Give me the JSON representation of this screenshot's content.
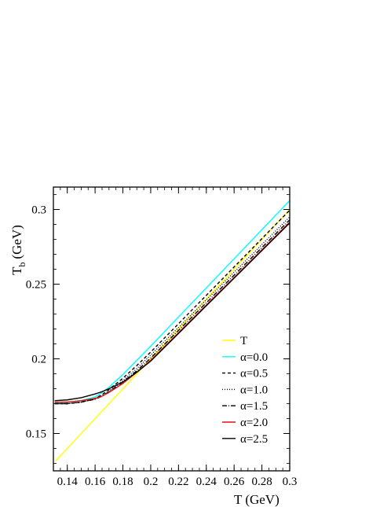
{
  "chart_data": {
    "type": "line",
    "xlabel": "T (GeV)",
    "ylabel_main": "T",
    "ylabel_sub": "b",
    "ylabel_unit": "(GeV)",
    "xlim": [
      0.13,
      0.3
    ],
    "ylim": [
      0.125,
      0.315
    ],
    "xticks": [
      0.14,
      0.16,
      0.18,
      0.2,
      0.22,
      0.24,
      0.26,
      0.28,
      0.3
    ],
    "xtick_labels": [
      "0.14",
      "0.16",
      "0.18",
      "0.2",
      "0.22",
      "0.24",
      "0.26",
      "0.28",
      "0.3"
    ],
    "yticks": [
      0.15,
      0.2,
      0.25,
      0.3
    ],
    "ytick_labels": [
      "0.15",
      "0.2",
      "0.25",
      "0.3"
    ],
    "legend_position": "lower-right",
    "series": [
      {
        "name": "T",
        "color": "#ffff00",
        "dash": "",
        "x": [
          0.1315,
          0.3
        ],
        "y": [
          0.1315,
          0.3
        ]
      },
      {
        "name": "α=0.0",
        "color": "#00ffff",
        "dash": "",
        "x": [
          0.131,
          0.14,
          0.15,
          0.16,
          0.165,
          0.17,
          0.18,
          0.19,
          0.2,
          0.22,
          0.24,
          0.26,
          0.28,
          0.3
        ],
        "y": [
          0.171,
          0.171,
          0.172,
          0.1745,
          0.1775,
          0.181,
          0.1895,
          0.199,
          0.2085,
          0.228,
          0.2475,
          0.267,
          0.2865,
          0.306
        ]
      },
      {
        "name": "α=0.5",
        "color": "#000000",
        "dash": "4,3",
        "x": [
          0.131,
          0.14,
          0.15,
          0.16,
          0.165,
          0.17,
          0.18,
          0.19,
          0.2,
          0.22,
          0.24,
          0.26,
          0.28,
          0.3
        ],
        "y": [
          0.17,
          0.17,
          0.171,
          0.1735,
          0.176,
          0.1795,
          0.187,
          0.1955,
          0.2045,
          0.2235,
          0.2425,
          0.2615,
          0.2805,
          0.2995
        ]
      },
      {
        "name": "α=1.0",
        "color": "#000000",
        "dash": "1,2",
        "x": [
          0.131,
          0.14,
          0.15,
          0.16,
          0.165,
          0.17,
          0.18,
          0.19,
          0.2,
          0.22,
          0.24,
          0.26,
          0.28,
          0.3
        ],
        "y": [
          0.17,
          0.17,
          0.171,
          0.173,
          0.1755,
          0.1785,
          0.1855,
          0.1935,
          0.2025,
          0.221,
          0.2395,
          0.258,
          0.2765,
          0.295
        ]
      },
      {
        "name": "α=1.5",
        "color": "#000000",
        "dash": "6,2,1,2",
        "x": [
          0.131,
          0.14,
          0.15,
          0.16,
          0.165,
          0.17,
          0.18,
          0.19,
          0.2,
          0.22,
          0.24,
          0.26,
          0.28,
          0.3
        ],
        "y": [
          0.17,
          0.17,
          0.171,
          0.173,
          0.175,
          0.178,
          0.1845,
          0.192,
          0.2005,
          0.219,
          0.2375,
          0.256,
          0.2745,
          0.293
        ]
      },
      {
        "name": "α=2.0",
        "color": "#e01010",
        "dash": "",
        "x": [
          0.131,
          0.14,
          0.15,
          0.16,
          0.165,
          0.17,
          0.18,
          0.19,
          0.2,
          0.22,
          0.24,
          0.26,
          0.28,
          0.3
        ],
        "y": [
          0.171,
          0.171,
          0.172,
          0.1735,
          0.175,
          0.1775,
          0.1835,
          0.191,
          0.199,
          0.2175,
          0.236,
          0.2545,
          0.273,
          0.2915
        ]
      },
      {
        "name": "α=2.5",
        "color": "#000000",
        "dash": "",
        "x": [
          0.131,
          0.14,
          0.15,
          0.16,
          0.165,
          0.17,
          0.18,
          0.19,
          0.2,
          0.22,
          0.24,
          0.26,
          0.28,
          0.3
        ],
        "y": [
          0.172,
          0.1725,
          0.174,
          0.1765,
          0.178,
          0.18,
          0.1845,
          0.191,
          0.1985,
          0.217,
          0.2355,
          0.254,
          0.2725,
          0.291
        ]
      }
    ]
  }
}
